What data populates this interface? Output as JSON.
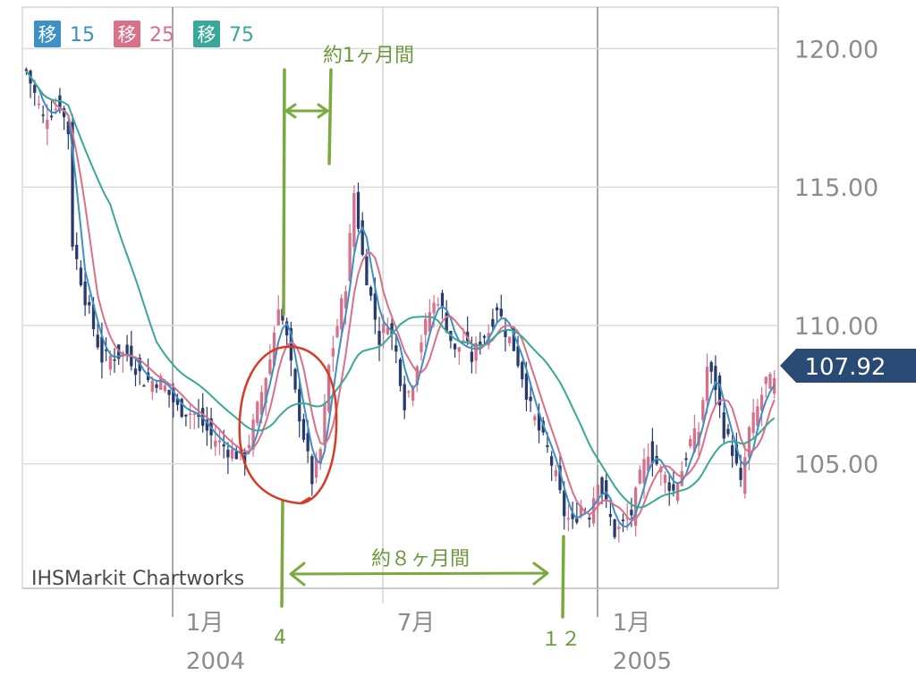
{
  "chart_data": {
    "type": "candlestick",
    "ylim": [
      100.5,
      121.5
    ],
    "y_ticks": [
      {
        "value": 120,
        "label": "120.00"
      },
      {
        "value": 115,
        "label": "115.00"
      },
      {
        "value": 110,
        "label": "110.00"
      },
      {
        "value": 105,
        "label": "105.00"
      }
    ],
    "x_ticks": [
      {
        "label": "1月",
        "sublabel": "2004"
      },
      {
        "label": "7月",
        "sublabel": ""
      },
      {
        "label": "1月",
        "sublabel": "2005"
      }
    ],
    "legend": [
      {
        "label": "移",
        "value": "15",
        "color": "#3d8fc4"
      },
      {
        "label": "移",
        "value": "25",
        "color": "#d9708a"
      },
      {
        "label": "移",
        "value": "75",
        "color": "#3aa898"
      }
    ],
    "last_price": "107.92",
    "watermark": "IHSMarkit Chartworks",
    "price_path": [
      [
        0,
        119.2
      ],
      [
        4,
        117.5
      ],
      [
        8,
        118.0
      ],
      [
        10,
        117.0
      ],
      [
        11,
        113.0
      ],
      [
        14,
        111.0
      ],
      [
        18,
        108.8
      ],
      [
        24,
        109.0
      ],
      [
        28,
        108.0
      ],
      [
        32,
        108.0
      ],
      [
        36,
        107.0
      ],
      [
        40,
        106.8
      ],
      [
        44,
        106.0
      ],
      [
        48,
        105.5
      ],
      [
        52,
        105.2
      ],
      [
        55,
        107.0
      ],
      [
        58,
        108.8
      ],
      [
        60,
        110.8
      ],
      [
        62,
        109.5
      ],
      [
        64,
        107.5
      ],
      [
        66,
        106.0
      ],
      [
        68,
        104.4
      ],
      [
        70,
        105.5
      ],
      [
        72,
        108.5
      ],
      [
        74,
        110.0
      ],
      [
        76,
        111.5
      ],
      [
        78,
        114.8
      ],
      [
        80,
        112.5
      ],
      [
        82,
        111.0
      ],
      [
        84,
        109.5
      ],
      [
        86,
        110.2
      ],
      [
        88,
        109.0
      ],
      [
        90,
        107.2
      ],
      [
        92,
        108.0
      ],
      [
        94,
        109.5
      ],
      [
        96,
        110.5
      ],
      [
        98,
        111.0
      ],
      [
        100,
        110.0
      ],
      [
        102,
        109.0
      ],
      [
        104,
        109.5
      ],
      [
        106,
        108.8
      ],
      [
        108,
        109.5
      ],
      [
        110,
        109.8
      ],
      [
        112,
        110.7
      ],
      [
        114,
        109.8
      ],
      [
        116,
        109.2
      ],
      [
        118,
        108.2
      ],
      [
        120,
        107.0
      ],
      [
        122,
        106.2
      ],
      [
        124,
        105.5
      ],
      [
        126,
        104.5
      ],
      [
        128,
        103.2
      ],
      [
        130,
        102.8
      ],
      [
        132,
        103.5
      ],
      [
        134,
        103.2
      ],
      [
        136,
        104.5
      ],
      [
        138,
        103.5
      ],
      [
        140,
        102.5
      ],
      [
        142,
        102.8
      ],
      [
        144,
        103.2
      ],
      [
        146,
        104.5
      ],
      [
        148,
        105.5
      ],
      [
        150,
        105.0
      ],
      [
        152,
        104.5
      ],
      [
        154,
        104.0
      ],
      [
        156,
        104.8
      ],
      [
        158,
        105.8
      ],
      [
        160,
        106.2
      ],
      [
        162,
        108.5
      ],
      [
        164,
        107.8
      ],
      [
        166,
        106.2
      ],
      [
        168,
        105.5
      ],
      [
        170,
        104.2
      ],
      [
        172,
        106.2
      ],
      [
        174,
        107.0
      ],
      [
        176,
        108.0
      ],
      [
        178,
        107.92
      ]
    ],
    "moving_averages": [
      {
        "period": 15,
        "color": "#3d8fc4"
      },
      {
        "period": 25,
        "color": "#d9708a"
      },
      {
        "period": 75,
        "color": "#3aa898"
      }
    ]
  },
  "annotations": {
    "top_label": "約1ヶ月間",
    "bottom_label": "約８ヶ月間",
    "marker_left": "4",
    "marker_right": "１２"
  }
}
